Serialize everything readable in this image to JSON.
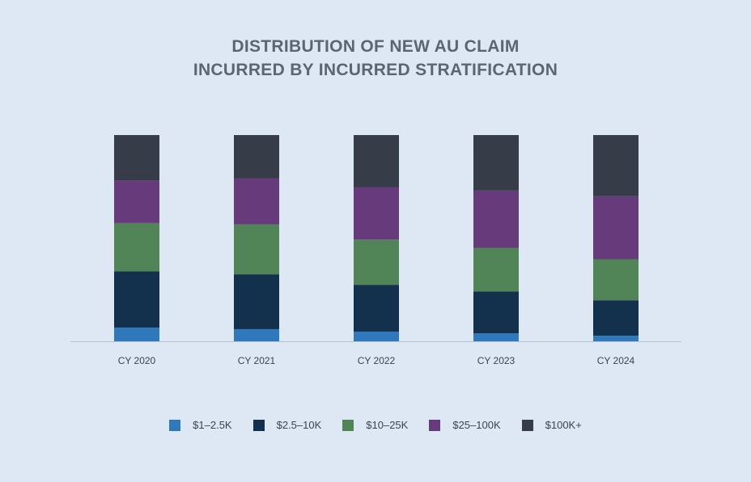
{
  "title_lines": [
    "DISTRIBUTION OF NEW AU CLAIM",
    "INCURRED BY INCURRED STRATIFICATION"
  ],
  "chart_data": {
    "type": "bar",
    "stacked": true,
    "normalized": true,
    "title": "DISTRIBUTION OF NEW AU CLAIM INCURRED BY INCURRED STRATIFICATION",
    "xlabel": "",
    "ylabel": "",
    "ylim": [
      0,
      100
    ],
    "grid": false,
    "legend_position": "bottom",
    "categories": [
      "CY 2020",
      "CY 2021",
      "CY 2022",
      "CY 2023",
      "CY 2024"
    ],
    "series": [
      {
        "name": "$1–2.5K",
        "color": "#2f78bc",
        "values": [
          6.6,
          5.9,
          4.7,
          3.9,
          2.7
        ]
      },
      {
        "name": "$2.5–10K",
        "color": "#13304c",
        "values": [
          27.3,
          26.6,
          22.7,
          20.3,
          17.2
        ]
      },
      {
        "name": "$10–25K",
        "color": "#518457",
        "values": [
          23.4,
          24.2,
          21.9,
          21.1,
          19.9
        ]
      },
      {
        "name": "$25–100K",
        "color": "#673a7b",
        "values": [
          20.7,
          22.3,
          25.4,
          27.7,
          30.5
        ]
      },
      {
        "name": "$100K+",
        "color": "#373c49",
        "values": [
          22.0,
          21.0,
          25.3,
          27.0,
          29.7
        ]
      }
    ]
  }
}
